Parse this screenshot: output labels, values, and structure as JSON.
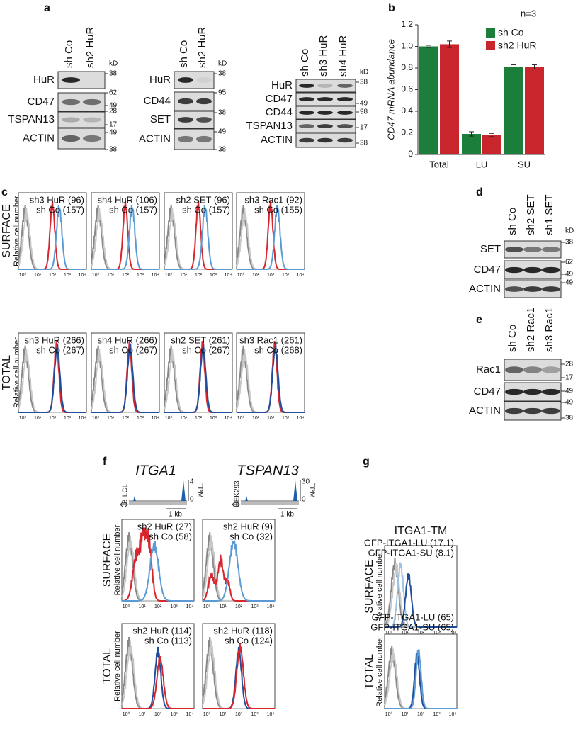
{
  "panel_a": {
    "label": "a",
    "kd": "kD",
    "blots": [
      {
        "lanes": [
          "sh Co",
          "sh2 HuR"
        ],
        "rows": [
          "HuR",
          "CD47",
          "TSPAN13",
          "ACTIN"
        ],
        "markers": [
          38,
          62,
          49,
          28,
          17,
          49,
          38
        ]
      },
      {
        "lanes": [
          "sh Co",
          "sh2 HuR"
        ],
        "rows": [
          "HuR",
          "CD44",
          "SET",
          "ACTIN"
        ],
        "markers": [
          38,
          95,
          38,
          49,
          38
        ]
      },
      {
        "lanes": [
          "sh Co",
          "sh3 HuR",
          "sh4 HuR"
        ],
        "rows": [
          "HuR",
          "CD47",
          "CD44",
          "TSPAN13",
          "ACTIN"
        ],
        "markers": [
          38,
          49,
          98,
          17,
          38
        ]
      }
    ]
  },
  "chart_data": {
    "type": "bar",
    "panel_label": "b",
    "ylabel": "CD47 mRNA abundance",
    "annotation": "n=3",
    "categories": [
      "Total",
      "LU",
      "SU"
    ],
    "series": [
      {
        "name": "sh Co",
        "color": "#1b7f3b",
        "values": [
          1.0,
          0.19,
          0.81
        ],
        "errors": [
          0.01,
          0.02,
          0.02
        ]
      },
      {
        "name": "sh2 HuR",
        "color": "#c9252c",
        "values": [
          1.02,
          0.18,
          0.81
        ],
        "errors": [
          0.03,
          0.015,
          0.02
        ]
      }
    ],
    "ylim": [
      0,
      1.2
    ],
    "yticks": [
      0,
      0.2,
      0.4,
      0.6,
      0.8,
      {
        "value": 1,
        "label": "1.0"
      },
      1.2
    ]
  },
  "panel_c": {
    "label": "c",
    "x_ticks": [
      "10⁰",
      "10¹",
      "10²",
      "10³",
      "10⁴"
    ],
    "rows": [
      {
        "title": "SURFACE",
        "ylabel": "Relative cell number",
        "plots": [
          {
            "legend": [
              "sh3 HuR (96)",
              "sh Co (157)"
            ]
          },
          {
            "legend": [
              "sh4 HuR (106)",
              "sh Co (157)"
            ]
          },
          {
            "legend": [
              "sh2 SET (96)",
              "sh Co (157)"
            ]
          },
          {
            "legend": [
              "sh3 Rac1 (92)",
              "sh Co (155)"
            ]
          }
        ]
      },
      {
        "title": "TOTAL",
        "ylabel": "Relative cell number",
        "plots": [
          {
            "legend": [
              "sh3 HuR (266)",
              "sh Co (267)"
            ]
          },
          {
            "legend": [
              "sh4 HuR (266)",
              "sh Co (267)"
            ]
          },
          {
            "legend": [
              "sh2 SET (261)",
              "sh Co (267)"
            ]
          },
          {
            "legend": [
              "sh3 Rac1 (261)",
              "sh Co (268)"
            ]
          }
        ]
      }
    ]
  },
  "panel_d": {
    "label": "d",
    "kd": "kD",
    "lanes": [
      "sh Co",
      "sh2 SET",
      "sh1 SET"
    ],
    "rows": [
      "SET",
      "CD47",
      "ACTIN"
    ],
    "markers": [
      38,
      62,
      49,
      49
    ]
  },
  "panel_e": {
    "label": "e",
    "lanes": [
      "sh Co",
      "sh2 Rac1",
      "sh3 Rac1"
    ],
    "rows": [
      "Rac1",
      "CD47",
      "ACTIN"
    ],
    "markers": [
      28,
      17,
      49,
      49,
      38
    ]
  },
  "panel_f": {
    "label": "f",
    "x_ticks": [
      "10⁰",
      "10¹",
      "10²",
      "10³",
      "10⁴"
    ],
    "tracks": [
      {
        "gene": "ITGA1",
        "cell": "B-LCL",
        "ymax": 4,
        "ymin": 0,
        "unit": "TPM",
        "scale": "1 kb"
      },
      {
        "gene": "TSPAN13",
        "cell": "HEK293",
        "ymax": 30,
        "ymin": 0,
        "unit": "TPM",
        "scale": "1 kb"
      }
    ],
    "rows": [
      {
        "title": "SURFACE",
        "ylabel": "Relative cell number",
        "plots": [
          {
            "legend": [
              "sh2 HuR (27)",
              "sh Co (58)"
            ]
          },
          {
            "legend": [
              "sh2 HuR (9)",
              "sh Co (32)"
            ]
          }
        ]
      },
      {
        "title": "TOTAL",
        "ylabel": "Relative cell number",
        "plots": [
          {
            "legend": [
              "sh2 HuR (114)",
              "sh Co (113)"
            ]
          },
          {
            "legend": [
              "sh2 HuR (118)",
              "sh Co (124)"
            ]
          }
        ]
      }
    ]
  },
  "panel_g": {
    "label": "g",
    "title": "ITGA1-TM",
    "x_ticks": [
      "10⁰",
      "10¹",
      "10²",
      "10³",
      "10⁴"
    ],
    "rows": [
      {
        "title": "SURFACE",
        "ylabel": "Relative cell number",
        "plots": [
          {
            "legend": [
              "GFP-ITGA1-LU (17.1)",
              "GFP-ITGA1-SU (8.1)"
            ]
          }
        ]
      },
      {
        "title": "TOTAL",
        "ylabel": "Relative cell number",
        "plots": [
          {
            "legend": [
              "GFP-ITGA1-LU (65)",
              "GFP-ITGA1-SU (65)"
            ]
          }
        ]
      }
    ]
  }
}
